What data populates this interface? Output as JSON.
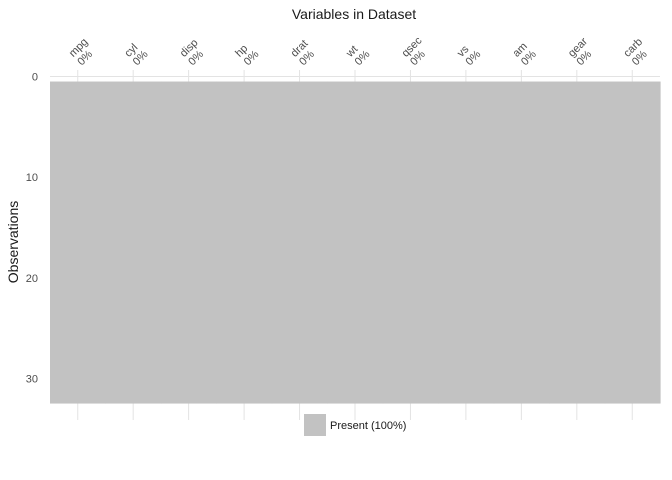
{
  "chart_data": {
    "type": "heatmap",
    "title": "Variables in Dataset",
    "xlabel": "",
    "ylabel": "Observations",
    "variables": [
      {
        "name": "mpg",
        "missing_pct": "0%"
      },
      {
        "name": "cyl",
        "missing_pct": "0%"
      },
      {
        "name": "disp",
        "missing_pct": "0%"
      },
      {
        "name": "hp",
        "missing_pct": "0%"
      },
      {
        "name": "drat",
        "missing_pct": "0%"
      },
      {
        "name": "wt",
        "missing_pct": "0%"
      },
      {
        "name": "qsec",
        "missing_pct": "0%"
      },
      {
        "name": "vs",
        "missing_pct": "0%"
      },
      {
        "name": "am",
        "missing_pct": "0%"
      },
      {
        "name": "gear",
        "missing_pct": "0%"
      },
      {
        "name": "carb",
        "missing_pct": "0%"
      }
    ],
    "observations": 32,
    "ylim": [
      0.5,
      32.5
    ],
    "yticks": [
      0,
      10,
      20,
      30
    ],
    "y_reversed": true,
    "grid": true,
    "legend": {
      "position": "bottom",
      "entries": [
        {
          "label": "Present (100%)",
          "color": "#c2c2c2"
        }
      ]
    },
    "colors": {
      "present": "#c2c2c2",
      "missing": "#474747"
    }
  }
}
